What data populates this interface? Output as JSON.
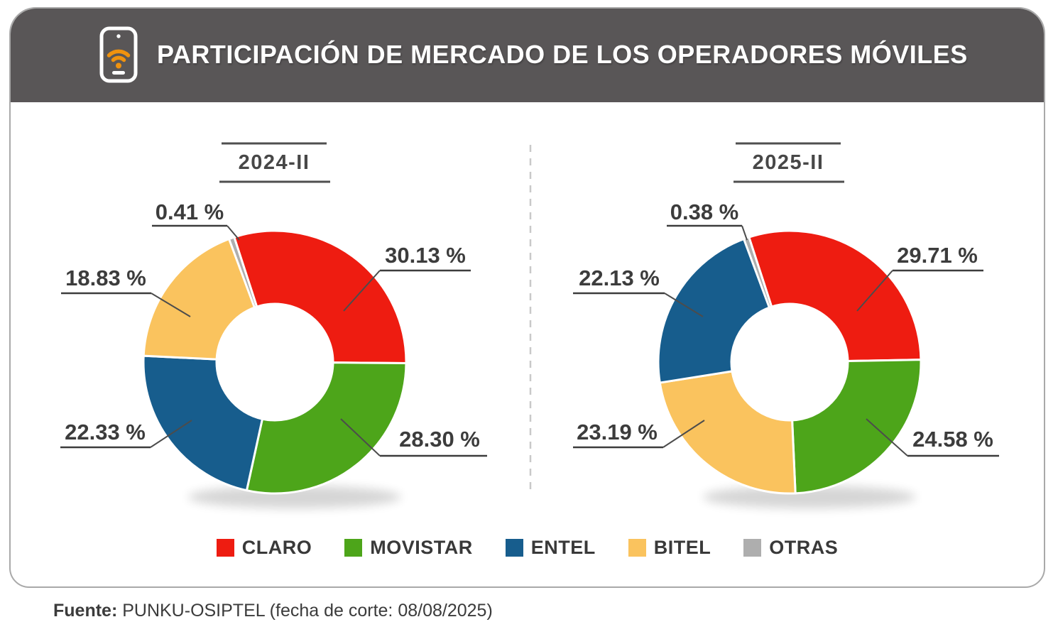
{
  "header": {
    "title": "PARTICIPACIÓN DE MERCADO DE LOS OPERADORES MÓVILES",
    "icon": "smartphone-wifi-icon"
  },
  "colors": {
    "claro": "#ee1c11",
    "movistar": "#4da51a",
    "entel": "#175d8d",
    "bitel": "#fac35e",
    "otras": "#aeaeae",
    "header_bar": "#595657",
    "icon_orange": "#f0920e"
  },
  "chart_data": [
    {
      "type": "pie",
      "variant": "donut",
      "title": "2024-II",
      "unit": "%",
      "categories": [
        "CLARO",
        "MOVISTAR",
        "ENTEL",
        "BITEL",
        "OTRAS"
      ],
      "values": [
        30.13,
        28.3,
        22.33,
        18.83,
        0.41
      ],
      "value_labels": [
        "30.13 %",
        "28.30 %",
        "22.33 %",
        "18.83 %",
        "0.41 %"
      ],
      "color_keys": [
        "claro",
        "movistar",
        "entel",
        "bitel",
        "otras"
      ],
      "direction": "clockwise",
      "rotation_deg": -18,
      "legend_position": "bottom"
    },
    {
      "type": "pie",
      "variant": "donut",
      "title": "2025-II",
      "unit": "%",
      "categories": [
        "CLARO",
        "MOVISTAR",
        "BITEL",
        "ENTEL",
        "OTRAS"
      ],
      "values": [
        29.71,
        24.58,
        23.19,
        22.13,
        0.38
      ],
      "value_labels": [
        "29.71 %",
        "24.58 %",
        "23.19 %",
        "22.13 %",
        "0.38 %"
      ],
      "color_keys": [
        "claro",
        "movistar",
        "bitel",
        "entel",
        "otras"
      ],
      "direction": "clockwise",
      "rotation_deg": -18,
      "legend_position": "bottom"
    }
  ],
  "legend": {
    "items": [
      {
        "label": "CLARO",
        "key": "claro"
      },
      {
        "label": "MOVISTAR",
        "key": "movistar"
      },
      {
        "label": "ENTEL",
        "key": "entel"
      },
      {
        "label": "BITEL",
        "key": "bitel"
      },
      {
        "label": "OTRAS",
        "key": "otras"
      }
    ]
  },
  "footer": {
    "source_label": "Fuente:",
    "source_text": " PUNKU-OSIPTEL (fecha de corte: 08/08/2025)"
  }
}
